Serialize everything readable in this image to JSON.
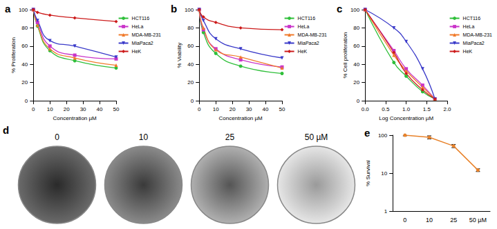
{
  "chart_data": [
    {
      "type": "line",
      "title": "a",
      "x_label": "Concentration µM",
      "y_label": "% Proliferation",
      "x": [
        0,
        2.5,
        10,
        25,
        50
      ],
      "xlim": [
        0,
        50
      ],
      "xticks": [
        0,
        10,
        20,
        30,
        40,
        50
      ],
      "ylim": [
        0,
        100
      ],
      "yticks": [
        0,
        20,
        40,
        60,
        80,
        100
      ],
      "grid": false,
      "legend": "right",
      "series": [
        {
          "name": "HCT116",
          "color": "#2fbf3a",
          "marker": "circle",
          "values": [
            100,
            82,
            55,
            44,
            36
          ]
        },
        {
          "name": "HeLa",
          "color": "#c933c9",
          "marker": "square",
          "values": [
            100,
            86,
            60,
            50,
            46
          ]
        },
        {
          "name": "MDA-MB-231",
          "color": "#f07a2a",
          "marker": "triangle",
          "values": [
            100,
            83,
            57,
            47,
            39
          ]
        },
        {
          "name": "MiaPaca2",
          "color": "#3a3ac9",
          "marker": "triangle-down",
          "values": [
            100,
            88,
            66,
            60,
            48
          ]
        },
        {
          "name": "HeK",
          "color": "#cc1a1a",
          "marker": "diamond",
          "values": [
            100,
            97,
            94,
            91,
            87
          ]
        }
      ]
    },
    {
      "type": "line",
      "title": "b",
      "x_label": "Concentration µM",
      "y_label": "% Viability",
      "x": [
        0,
        2.5,
        10,
        25,
        50
      ],
      "xlim": [
        0,
        50
      ],
      "xticks": [
        0,
        10,
        20,
        30,
        40,
        50
      ],
      "ylim": [
        0,
        100
      ],
      "yticks": [
        0,
        20,
        40,
        60,
        80,
        100
      ],
      "grid": false,
      "legend": "right",
      "series": [
        {
          "name": "HCT116",
          "color": "#2fbf3a",
          "marker": "circle",
          "values": [
            100,
            75,
            52,
            38,
            30
          ]
        },
        {
          "name": "HeLa",
          "color": "#c933c9",
          "marker": "square",
          "values": [
            100,
            78,
            57,
            45,
            37
          ]
        },
        {
          "name": "MDA-MB-231",
          "color": "#f07a2a",
          "marker": "triangle",
          "values": [
            100,
            80,
            56,
            48,
            36
          ]
        },
        {
          "name": "MiaPaca2",
          "color": "#3a3ac9",
          "marker": "triangle-down",
          "values": [
            100,
            88,
            68,
            57,
            47
          ]
        },
        {
          "name": "HeK",
          "color": "#cc1a1a",
          "marker": "diamond",
          "values": [
            100,
            92,
            86,
            80,
            78
          ]
        }
      ]
    },
    {
      "type": "line",
      "title": "c",
      "x_label": "Log Concentration µM",
      "y_label": "% Cell proliferation",
      "x": [
        0,
        0.7,
        1.0,
        1.4,
        1.7
      ],
      "xlim": [
        0,
        2
      ],
      "xticks": [
        {
          "value": 0,
          "label": "0.0"
        },
        {
          "value": 0.5,
          "label": "0.5"
        },
        {
          "value": 1,
          "label": "1.0"
        },
        {
          "value": 1.5,
          "label": "1.5"
        },
        {
          "value": 2,
          "label": "2.0"
        }
      ],
      "ylim": [
        0,
        100
      ],
      "yticks": [
        0,
        20,
        40,
        60,
        80,
        100
      ],
      "grid": false,
      "legend": "right",
      "series": [
        {
          "name": "HCT116",
          "color": "#2fbf3a",
          "marker": "circle",
          "values": [
            100,
            42,
            27,
            10,
            2
          ]
        },
        {
          "name": "HeLa",
          "color": "#c933c9",
          "marker": "square",
          "values": [
            100,
            55,
            35,
            17,
            2
          ]
        },
        {
          "name": "MDA-MB-231",
          "color": "#f07a2a",
          "marker": "triangle",
          "values": [
            100,
            50,
            33,
            15,
            2
          ]
        },
        {
          "name": "MiaPaca2",
          "color": "#3a3ac9",
          "marker": "triangle-down",
          "values": [
            100,
            80,
            65,
            35,
            2
          ]
        },
        {
          "name": "HeK",
          "color": "#cc1a1a",
          "marker": "diamond",
          "values": [
            100,
            53,
            30,
            12,
            2
          ]
        }
      ]
    },
    {
      "type": "line",
      "title": "e",
      "y_label": "% Survival",
      "log": "y",
      "categories": [
        "0",
        "10",
        "25",
        "50 µM"
      ],
      "values": [
        100,
        88,
        52,
        12
      ],
      "errors": [
        4,
        8,
        5,
        1
      ],
      "color": "#e8822a",
      "marker": "circle",
      "ylim": [
        1,
        100
      ],
      "yticks": [
        1,
        10,
        100
      ],
      "grid": false
    }
  ],
  "panel_d": {
    "title": "d",
    "captions": [
      "0",
      "10",
      "25",
      "50 µM"
    ]
  }
}
